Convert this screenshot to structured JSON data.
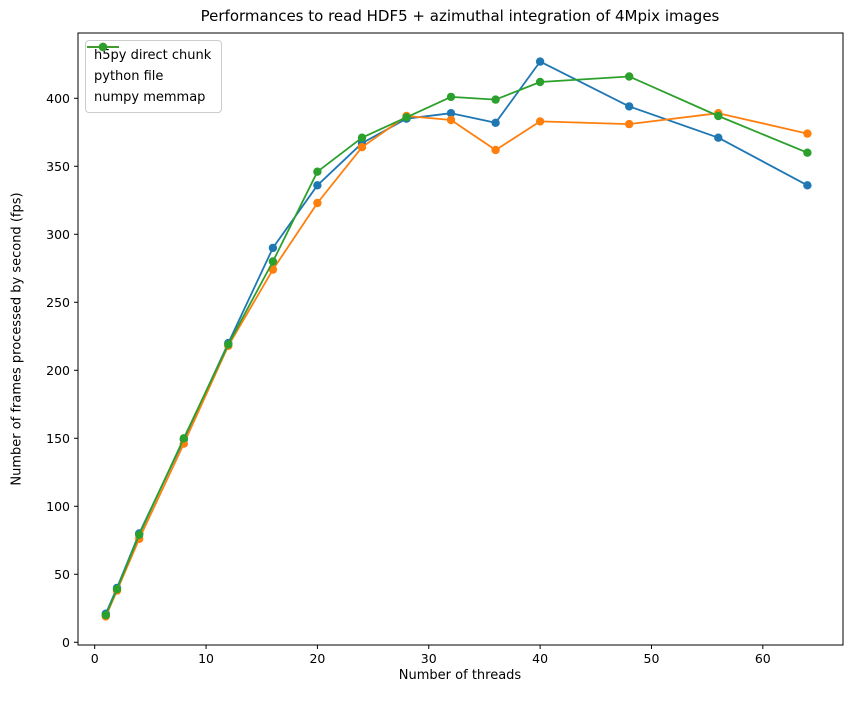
{
  "figure": {
    "title": "Performances to read HDF5 + azimuthal integration of 4Mpix images",
    "xlabel": "Number of threads",
    "ylabel": "Number of frames processed by second (fps)"
  },
  "legend": {
    "position": "upper left",
    "entries": [
      "h5py direct chunk",
      "python file",
      "numpy memmap"
    ]
  },
  "chart_data": {
    "type": "line",
    "title": "Performances to read HDF5 + azimuthal integration of 4Mpix images",
    "xlabel": "Number of threads",
    "ylabel": "Number of frames processed by second (fps)",
    "x": [
      1,
      2,
      4,
      8,
      12,
      16,
      20,
      24,
      28,
      32,
      36,
      40,
      48,
      56,
      64
    ],
    "series": [
      {
        "name": "h5py direct chunk",
        "color": "#1f77b4",
        "values": [
          21,
          40,
          80,
          149,
          220,
          290,
          336,
          367,
          385,
          389,
          382,
          427,
          394,
          371,
          336
        ]
      },
      {
        "name": "python file",
        "color": "#ff7f0e",
        "values": [
          19,
          38,
          76,
          146,
          218,
          274,
          323,
          364,
          387,
          384,
          362,
          383,
          381,
          389,
          374
        ]
      },
      {
        "name": "numpy memmap",
        "color": "#2ca02c",
        "values": [
          20,
          39,
          79,
          150,
          219,
          280,
          346,
          371,
          386,
          401,
          399,
          412,
          416,
          387,
          360
        ]
      }
    ],
    "xticks": [
      0,
      10,
      20,
      30,
      40,
      50,
      60
    ],
    "yticks": [
      0,
      50,
      100,
      150,
      200,
      250,
      300,
      350,
      400
    ],
    "xlim": [
      -1.5,
      67.2
    ],
    "ylim": [
      -2,
      448
    ],
    "grid": false,
    "legend_position": "upper left",
    "marker": "circle",
    "axis_color": "#000000",
    "background": "#ffffff"
  }
}
